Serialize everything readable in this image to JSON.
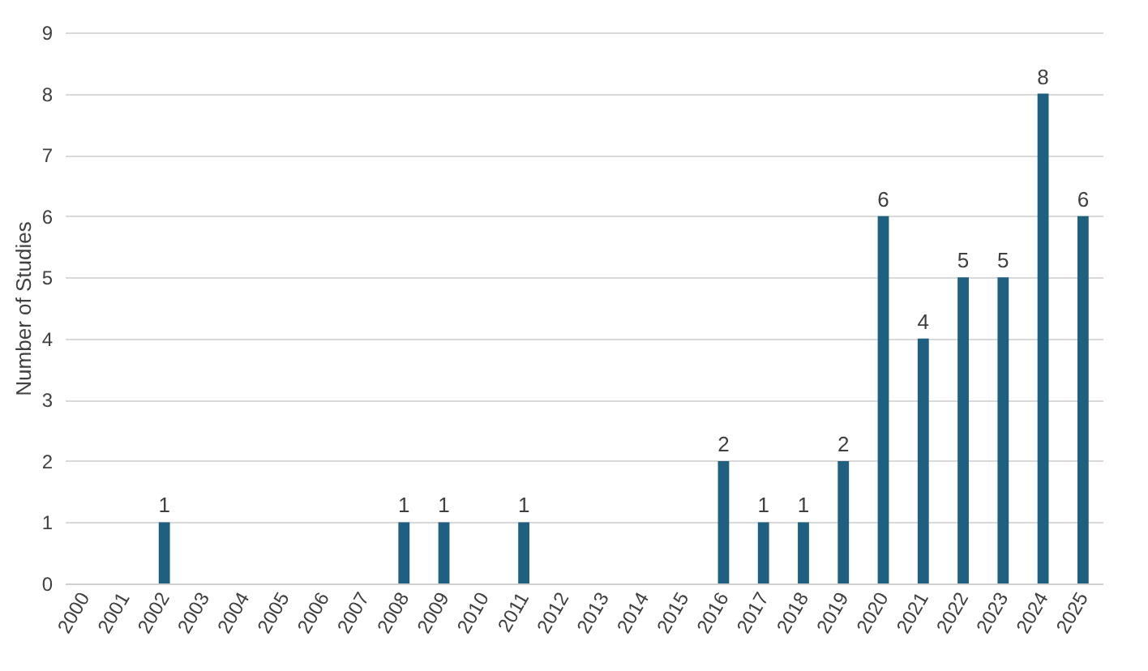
{
  "chart_data": {
    "type": "bar",
    "ylabel": "Number of Studies",
    "categories": [
      "2000",
      "2001",
      "2002",
      "2003",
      "2004",
      "2005",
      "2006",
      "2007",
      "2008",
      "2009",
      "2010",
      "2011",
      "2012",
      "2013",
      "2014",
      "2015",
      "2016",
      "2017",
      "2018",
      "2019",
      "2020",
      "2021",
      "2022",
      "2023",
      "2024",
      "2025"
    ],
    "values": [
      0,
      0,
      1,
      0,
      0,
      0,
      0,
      0,
      1,
      1,
      0,
      1,
      0,
      0,
      0,
      0,
      2,
      1,
      1,
      2,
      6,
      4,
      5,
      5,
      8,
      6
    ],
    "value_labels": [
      null,
      null,
      "1",
      null,
      null,
      null,
      null,
      null,
      "1",
      "1",
      null,
      "1",
      null,
      null,
      null,
      null,
      "2",
      "1",
      "1",
      "2",
      "6",
      "4",
      "5",
      "5",
      "8",
      "6"
    ],
    "color": "#1f5f80",
    "ylim": [
      0,
      9
    ],
    "yticks": [
      0,
      1,
      2,
      3,
      4,
      5,
      6,
      7,
      8,
      9
    ],
    "grid": "y"
  }
}
